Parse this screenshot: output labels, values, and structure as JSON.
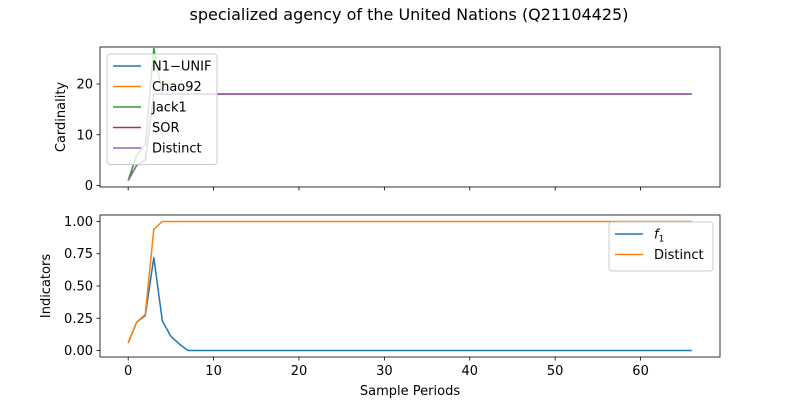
{
  "figure": {
    "title": "specialized agency of the United Nations (Q21104425)"
  },
  "chart_data": [
    {
      "type": "line",
      "ylabel": "Cardinality",
      "xlim": [
        -3.3,
        69.3
      ],
      "ylim": [
        -0.3,
        27.3
      ],
      "yticks": [
        0,
        10,
        20
      ],
      "xticks": [
        0,
        10,
        20,
        30,
        40,
        50,
        60
      ],
      "show_xtick_labels": false,
      "legend_position": "upper-left",
      "series": [
        {
          "name": "N1−UNIF",
          "color": "#1f77b4",
          "x": [
            0,
            1,
            2,
            3,
            4,
            5,
            6,
            7,
            66
          ],
          "y": [
            1,
            4,
            5,
            18,
            18,
            18,
            18,
            18,
            18
          ]
        },
        {
          "name": "Chao92",
          "color": "#ff7f0e",
          "x": [
            0,
            1,
            2,
            3,
            4,
            5,
            6,
            7,
            66
          ],
          "y": [
            1,
            4,
            5,
            18,
            18,
            18,
            18,
            18,
            18
          ]
        },
        {
          "name": "Jack1",
          "color": "#2ca02c",
          "x": [
            0,
            1,
            2,
            3,
            4,
            5,
            6,
            7,
            66
          ],
          "y": [
            1,
            6,
            8,
            27,
            18,
            18,
            18,
            18,
            18
          ]
        },
        {
          "name": "SOR",
          "color": "#d62728",
          "x": [
            0,
            1,
            2,
            3,
            4,
            5,
            6,
            7,
            66
          ],
          "y": [
            1,
            4,
            5,
            18,
            18,
            18,
            18,
            18,
            18
          ]
        },
        {
          "name": "Distinct",
          "color": "#9467bd",
          "x": [
            0,
            1,
            2,
            3,
            4,
            5,
            6,
            7,
            66
          ],
          "y": [
            1,
            4,
            5,
            18,
            18,
            18,
            18,
            18,
            18
          ]
        }
      ]
    },
    {
      "type": "line",
      "ylabel": "Indicators",
      "xlabel": "Sample Periods",
      "xlim": [
        -3.3,
        69.3
      ],
      "ylim": [
        -0.05,
        1.05
      ],
      "yticks": [
        0.0,
        0.25,
        0.5,
        0.75,
        1.0
      ],
      "ytick_labels": [
        "0.00",
        "0.25",
        "0.50",
        "0.75",
        "1.00"
      ],
      "xticks": [
        0,
        10,
        20,
        30,
        40,
        50,
        60
      ],
      "show_xtick_labels": true,
      "legend_position": "upper-right",
      "series": [
        {
          "name": "f1",
          "label_main": "f",
          "label_sub": "1",
          "color": "#1f77b4",
          "x": [
            0,
            1,
            2,
            3,
            4,
            5,
            6,
            7,
            66
          ],
          "y": [
            0.06,
            0.22,
            0.27,
            0.72,
            0.23,
            0.11,
            0.05,
            0.0,
            0.0
          ]
        },
        {
          "name": "Distinct",
          "color": "#ff7f0e",
          "x": [
            0,
            1,
            2,
            3,
            4,
            5,
            6,
            7,
            66
          ],
          "y": [
            0.06,
            0.22,
            0.28,
            0.94,
            1.0,
            1.0,
            1.0,
            1.0,
            1.0
          ]
        }
      ]
    }
  ]
}
